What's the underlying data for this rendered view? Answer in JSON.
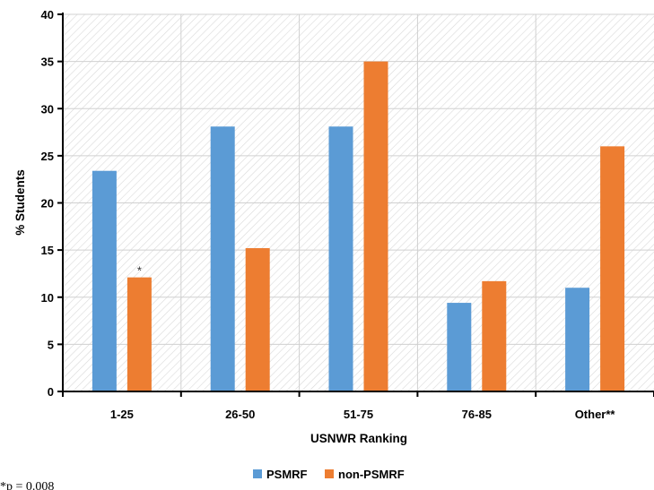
{
  "chart_data": {
    "type": "bar",
    "title": "",
    "xlabel": "USNWR Ranking",
    "ylabel": "% Students",
    "categories": [
      "1-25",
      "26-50",
      "51-75",
      "76-85",
      "Other**"
    ],
    "series": [
      {
        "name": "PSMRF",
        "values": [
          23.4,
          28.1,
          28.1,
          9.4,
          11.0
        ]
      },
      {
        "name": "non-PSMRF",
        "values": [
          12.1,
          15.2,
          35.0,
          11.7,
          26.0
        ]
      }
    ],
    "ylim": [
      0,
      40
    ],
    "yticks": [
      0,
      5,
      10,
      15,
      20,
      25,
      30,
      35,
      40
    ],
    "grid": true,
    "legend_position": "bottom",
    "annotations": [
      {
        "text": "*",
        "category": "1-25",
        "series": "non-PSMRF"
      }
    ],
    "footnote": "*p = 0.008",
    "colors": {
      "PSMRF": "#5b9bd5",
      "non-PSMRF": "#ed7d31"
    }
  }
}
